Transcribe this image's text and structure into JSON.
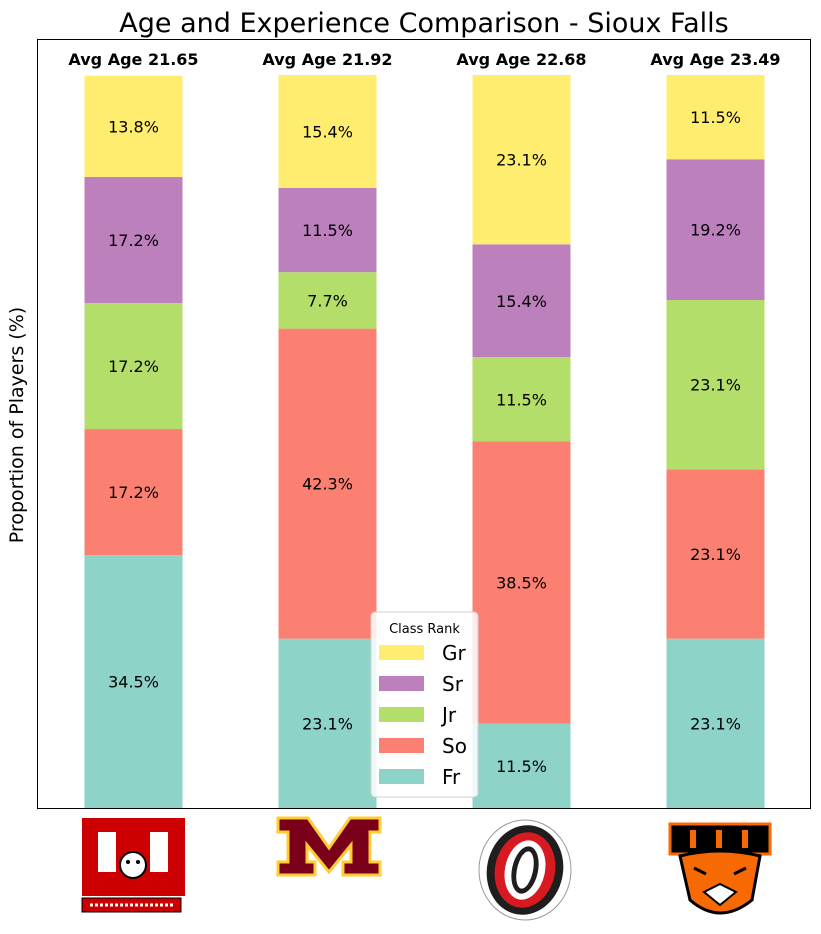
{
  "chart_data": {
    "type": "bar",
    "stacked": true,
    "title": "Age and Experience Comparison - Sioux Falls",
    "xlabel": "",
    "ylabel": "Proportion of Players (%)",
    "ylim": [
      0,
      100
    ],
    "grid": false,
    "categories": [
      "Boston University",
      "Minnesota",
      "Omaha",
      "RIT"
    ],
    "avg_age_labels": [
      "Avg Age 21.65",
      "Avg Age 21.92",
      "Avg Age 22.68",
      "Avg Age 23.49"
    ],
    "series": [
      {
        "name": "Fr",
        "color": "#8dd3c7",
        "values": [
          34.5,
          23.1,
          11.5,
          23.1
        ]
      },
      {
        "name": "So",
        "color": "#fb8072",
        "values": [
          17.2,
          42.3,
          38.5,
          23.1
        ]
      },
      {
        "name": "Jr",
        "color": "#b3de69",
        "values": [
          17.2,
          7.7,
          11.5,
          23.1
        ]
      },
      {
        "name": "Sr",
        "color": "#bc80bd",
        "values": [
          17.2,
          11.5,
          15.4,
          19.2
        ]
      },
      {
        "name": "Gr",
        "color": "#ffed6f",
        "values": [
          13.8,
          15.4,
          23.1,
          11.5
        ]
      }
    ],
    "legend": {
      "title": "Class Rank",
      "placement": "lower-center",
      "order": [
        "Gr",
        "Sr",
        "Jr",
        "So",
        "Fr"
      ]
    }
  },
  "logos": [
    {
      "name": "bu-logo",
      "text": "BU",
      "caption": "BOSTON UNIVERSITY",
      "color": "#cc0000"
    },
    {
      "name": "minnesota-logo",
      "text": "M",
      "color": "#7a0019",
      "accent": "#ffcc33"
    },
    {
      "name": "omaha-logo",
      "text": "O",
      "color": "#d71920"
    },
    {
      "name": "rit-logo",
      "text": "RIT",
      "color": "#f76902"
    }
  ]
}
